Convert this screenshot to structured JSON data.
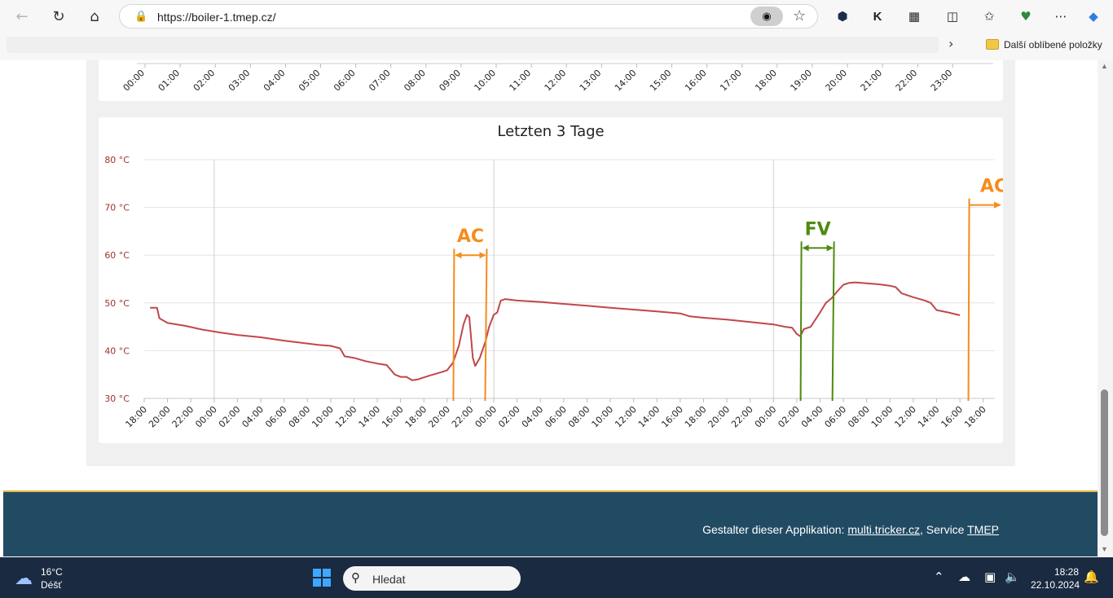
{
  "browser": {
    "url": "https://boiler-1.tmep.cz/",
    "favorites_label": "Další oblíbené položky"
  },
  "top_chart": {
    "hour_labels": [
      "00:00",
      "01:00",
      "02:00",
      "03:00",
      "04:00",
      "05:00",
      "06:00",
      "07:00",
      "08:00",
      "09:00",
      "10:00",
      "11:00",
      "12:00",
      "13:00",
      "14:00",
      "15:00",
      "16:00",
      "17:00",
      "18:00",
      "19:00",
      "20:00",
      "21:00",
      "22:00",
      "23:00"
    ]
  },
  "chart_data": {
    "type": "line",
    "title": "Letzten 3 Tage",
    "y_tick_labels": [
      "80 °C",
      "70 °C",
      "60 °C",
      "50 °C",
      "40 °C",
      "30 °C"
    ],
    "y_ticks": [
      80,
      70,
      60,
      50,
      40,
      30
    ],
    "ylim": [
      30,
      80
    ],
    "x_unit": "hours since first tick (18:00)",
    "xlim": [
      0,
      73
    ],
    "x_tick_labels": [
      "18:00",
      "20:00",
      "22:00",
      "00:00",
      "02:00",
      "04:00",
      "06:00",
      "08:00",
      "10:00",
      "12:00",
      "14:00",
      "16:00",
      "18:00",
      "20:00",
      "22:00",
      "00:00",
      "02:00",
      "04:00",
      "06:00",
      "08:00",
      "10:00",
      "12:00",
      "14:00",
      "16:00",
      "18:00",
      "20:00",
      "22:00",
      "00:00",
      "02:00",
      "04:00",
      "06:00",
      "08:00",
      "10:00",
      "12:00",
      "14:00",
      "16:00",
      "18:00"
    ],
    "grid": "horizontal and day separators",
    "series": [
      {
        "color": "#c0474a",
        "points": [
          [
            0.5,
            49
          ],
          [
            1.1,
            49
          ],
          [
            1.3,
            46.8
          ],
          [
            2,
            45.8
          ],
          [
            3.5,
            45.2
          ],
          [
            5,
            44.4
          ],
          [
            6.5,
            43.8
          ],
          [
            8,
            43.3
          ],
          [
            10,
            42.8
          ],
          [
            12,
            42.1
          ],
          [
            14,
            41.5
          ],
          [
            15,
            41.2
          ],
          [
            16,
            41
          ],
          [
            16.8,
            40.5
          ],
          [
            17.2,
            38.8
          ],
          [
            18,
            38.5
          ],
          [
            19,
            37.8
          ],
          [
            20,
            37.3
          ],
          [
            20.8,
            37
          ],
          [
            21.5,
            35
          ],
          [
            22,
            34.5
          ],
          [
            22.5,
            34.5
          ],
          [
            23,
            33.8
          ],
          [
            23.5,
            34
          ],
          [
            24.5,
            34.8
          ],
          [
            25.5,
            35.5
          ],
          [
            26,
            35.9
          ],
          [
            26.5,
            37.5
          ],
          [
            27,
            41
          ],
          [
            27.4,
            45.5
          ],
          [
            27.7,
            47.5
          ],
          [
            27.9,
            47
          ],
          [
            28.2,
            38.5
          ],
          [
            28.4,
            36.8
          ],
          [
            28.8,
            38.5
          ],
          [
            29.3,
            42
          ],
          [
            29.6,
            45
          ],
          [
            30,
            47.5
          ],
          [
            30.3,
            48
          ],
          [
            30.6,
            50.5
          ],
          [
            31,
            50.8
          ],
          [
            32,
            50.5
          ],
          [
            34,
            50.2
          ],
          [
            36,
            49.8
          ],
          [
            38,
            49.4
          ],
          [
            40,
            49
          ],
          [
            42,
            48.6
          ],
          [
            44,
            48.2
          ],
          [
            46,
            47.8
          ],
          [
            46.8,
            47.2
          ],
          [
            48,
            46.9
          ],
          [
            50,
            46.5
          ],
          [
            52,
            46
          ],
          [
            54,
            45.5
          ],
          [
            55,
            45
          ],
          [
            55.6,
            44.8
          ],
          [
            56,
            43.5
          ],
          [
            56.3,
            43
          ],
          [
            56.6,
            44.5
          ],
          [
            57.2,
            45
          ],
          [
            58,
            48
          ],
          [
            58.5,
            50
          ],
          [
            59,
            51
          ],
          [
            59.5,
            52.5
          ],
          [
            60,
            53.8
          ],
          [
            60.5,
            54.2
          ],
          [
            61,
            54.3
          ],
          [
            62,
            54.1
          ],
          [
            63,
            53.9
          ],
          [
            64,
            53.6
          ],
          [
            64.5,
            53.3
          ],
          [
            65,
            52
          ],
          [
            66,
            51.2
          ],
          [
            67,
            50.5
          ],
          [
            67.5,
            50
          ],
          [
            68,
            48.5
          ],
          [
            69,
            48
          ],
          [
            70,
            47.4
          ]
        ]
      }
    ],
    "annotations": [
      {
        "label": "AC",
        "color": "#f58c1c",
        "from_x": 26.6,
        "to_x": 29.4,
        "arrow_y": 60
      },
      {
        "label": "FV",
        "color": "#4f8a10",
        "from_x": 56.4,
        "to_x": 59.2,
        "arrow_y": 61.5
      },
      {
        "label": "AC",
        "color": "#f58c1c",
        "from_x": 70.8,
        "to_x": 74.5,
        "arrow_y": 70.5
      }
    ]
  },
  "footer": {
    "prefix": "Gestalter dieser Applikation: ",
    "link1": "multi.tricker.cz",
    "middle": ", Service ",
    "link2": "TMEP"
  },
  "taskbar": {
    "weather_temp": "16°C",
    "weather_desc": "Déšť",
    "search_placeholder": "Hledat",
    "time": "18:28",
    "date": "22.10.2024"
  }
}
